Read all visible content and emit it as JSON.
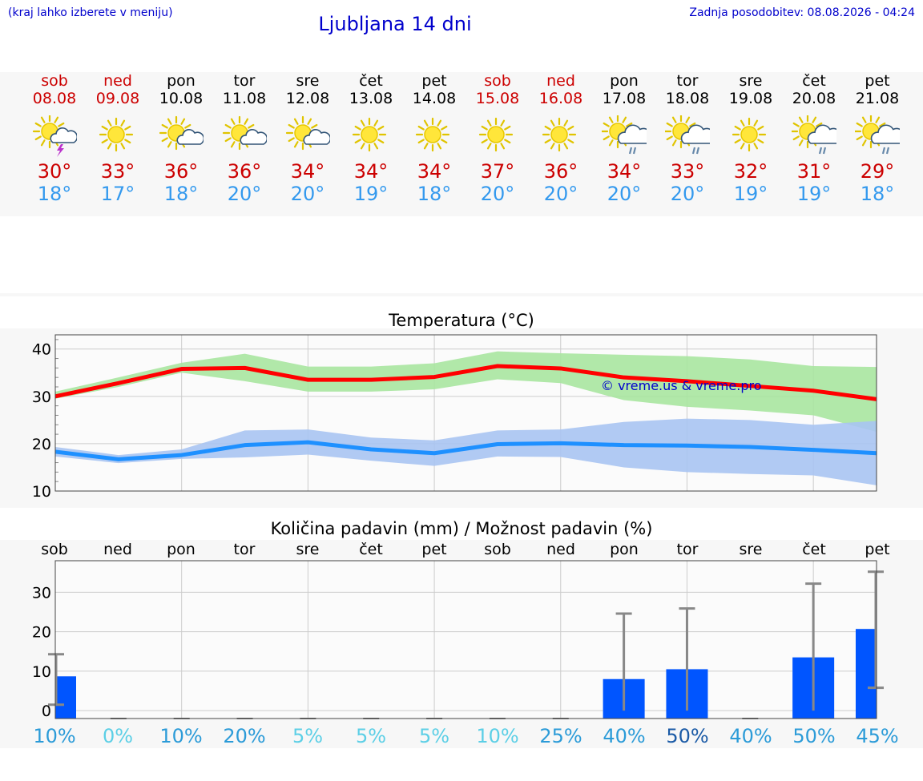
{
  "header": {
    "hint": "(kraj lahko izberete v meniju)",
    "title": "Ljubljana 14 dni",
    "updated": "Zadnja posodobitev: 08.08.2026 - 04:24"
  },
  "days": [
    {
      "name": "sob",
      "date": "08.08",
      "weekend": true,
      "icon": "sun-cloud-thunder-icon",
      "tmax": "30°",
      "tmin": "18°"
    },
    {
      "name": "ned",
      "date": "09.08",
      "weekend": true,
      "icon": "sun-icon",
      "tmax": "33°",
      "tmin": "17°"
    },
    {
      "name": "pon",
      "date": "10.08",
      "weekend": false,
      "icon": "sun-cloud-icon",
      "tmax": "36°",
      "tmin": "18°"
    },
    {
      "name": "tor",
      "date": "11.08",
      "weekend": false,
      "icon": "sun-cloud-icon",
      "tmax": "36°",
      "tmin": "20°"
    },
    {
      "name": "sre",
      "date": "12.08",
      "weekend": false,
      "icon": "sun-cloud-icon",
      "tmax": "34°",
      "tmin": "20°"
    },
    {
      "name": "čet",
      "date": "13.08",
      "weekend": false,
      "icon": "sun-icon",
      "tmax": "34°",
      "tmin": "19°"
    },
    {
      "name": "pet",
      "date": "14.08",
      "weekend": false,
      "icon": "sun-icon",
      "tmax": "34°",
      "tmin": "18°"
    },
    {
      "name": "sob",
      "date": "15.08",
      "weekend": true,
      "icon": "sun-icon",
      "tmax": "37°",
      "tmin": "20°"
    },
    {
      "name": "ned",
      "date": "16.08",
      "weekend": true,
      "icon": "sun-icon",
      "tmax": "36°",
      "tmin": "20°"
    },
    {
      "name": "pon",
      "date": "17.08",
      "weekend": false,
      "icon": "sun-cloud-rain-icon",
      "tmax": "34°",
      "tmin": "20°"
    },
    {
      "name": "tor",
      "date": "18.08",
      "weekend": false,
      "icon": "sun-cloud-rain-icon",
      "tmax": "33°",
      "tmin": "20°"
    },
    {
      "name": "sre",
      "date": "19.08",
      "weekend": false,
      "icon": "sun-icon",
      "tmax": "32°",
      "tmin": "19°"
    },
    {
      "name": "čet",
      "date": "20.08",
      "weekend": false,
      "icon": "sun-cloud-rain-icon",
      "tmax": "31°",
      "tmin": "19°"
    },
    {
      "name": "pet",
      "date": "21.08",
      "weekend": false,
      "icon": "sun-cloud-rain-icon",
      "tmax": "29°",
      "tmin": "18°"
    }
  ],
  "colors": {
    "weekend": "#cc0000",
    "tmax_line": "#ff0000",
    "tmin_line": "#1e90ff",
    "tmax_band": "#a8e6a0",
    "tmin_band": "#a9c4f2",
    "precip_bar": "#0055ff",
    "error_bar": "#888888",
    "watermark": "#0000cc"
  },
  "chart_data": [
    {
      "type": "line",
      "title": "Temperatura (°C)",
      "watermark": "© vreme.us & vreme.pro",
      "ylim": [
        10,
        43
      ],
      "yticks": [
        10,
        20,
        30,
        40
      ],
      "grid": true,
      "x": [
        0,
        1,
        2,
        3,
        4,
        5,
        6,
        7,
        8,
        9,
        10,
        11,
        12,
        13
      ],
      "series": [
        {
          "role": "max",
          "values": [
            30,
            32.8,
            35.8,
            36,
            33.5,
            33.5,
            34.1,
            36.4,
            35.9,
            34,
            33.2,
            32.2,
            31.2,
            29.4
          ],
          "low": [
            29.5,
            32,
            35,
            33.2,
            31,
            31,
            31.5,
            33.6,
            32.8,
            29.2,
            27.8,
            27,
            26,
            22.5
          ],
          "high": [
            31,
            34,
            37.1,
            39,
            36.3,
            36.3,
            37,
            39.5,
            39.1,
            38.8,
            38.5,
            37.8,
            36.4,
            36.2
          ]
        },
        {
          "role": "min",
          "values": [
            18.3,
            16.7,
            17.6,
            19.7,
            20.3,
            18.8,
            18,
            19.9,
            20.1,
            19.7,
            19.6,
            19.3,
            18.7,
            18
          ],
          "low": [
            17.3,
            15.9,
            16.8,
            17.1,
            17.7,
            16.4,
            15.3,
            17.3,
            17.2,
            15,
            14,
            13.6,
            13.3,
            11.2
          ],
          "high": [
            19.3,
            17.6,
            18.8,
            22.8,
            23,
            21.3,
            20.7,
            22.8,
            23,
            24.6,
            25.3,
            25,
            24,
            24.8
          ]
        }
      ]
    },
    {
      "type": "bar",
      "title": "Količina padavin (mm) / Možnost padavin (%)",
      "categories": [
        "sob",
        "ned",
        "pon",
        "tor",
        "sre",
        "čet",
        "pet",
        "sob",
        "ned",
        "pon",
        "tor",
        "sre",
        "čet",
        "pet"
      ],
      "ylim": [
        -2,
        38
      ],
      "yticks": [
        0,
        10,
        20,
        30
      ],
      "grid": true,
      "values": [
        8.7,
        0,
        0,
        0,
        0,
        0,
        0,
        0,
        0,
        8,
        10.5,
        0,
        13.5,
        20.7
      ],
      "err_low": [
        1.5,
        0,
        0,
        0,
        0,
        0,
        0,
        0,
        0,
        0,
        0,
        0,
        0,
        5.8
      ],
      "err_high": [
        14.3,
        0,
        0,
        0,
        0,
        0,
        0,
        0,
        0,
        24.6,
        25.9,
        0,
        32.2,
        35.2
      ],
      "probabilities": [
        "10%",
        "0%",
        "10%",
        "20%",
        "5%",
        "5%",
        "5%",
        "10%",
        "25%",
        "40%",
        "50%",
        "40%",
        "50%",
        "45%"
      ],
      "prob_colors": [
        "#2b9bd8",
        "#5ccfe6",
        "#2b9bd8",
        "#2b9bd8",
        "#5ccfe6",
        "#5ccfe6",
        "#5ccfe6",
        "#5ccfe6",
        "#2b9bd8",
        "#2b9bd8",
        "#1a5aa6",
        "#2b9bd8",
        "#2b9bd8",
        "#2b9bd8"
      ]
    }
  ]
}
